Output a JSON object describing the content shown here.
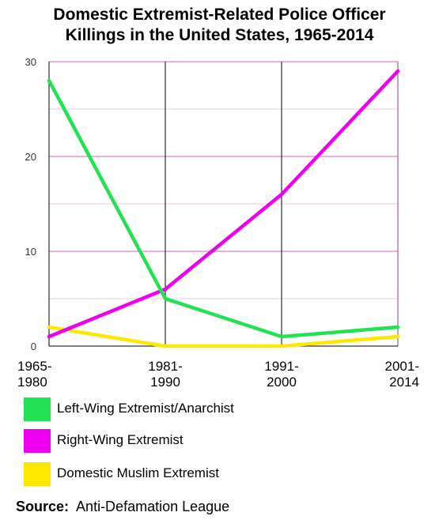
{
  "chart_data": {
    "type": "line",
    "title_lines": [
      "Domestic Extremist-Related Police Officer",
      "Killings in the United States, 1965-2014"
    ],
    "categories": [
      [
        "1965-",
        "1980"
      ],
      [
        "1981-",
        "1990"
      ],
      [
        "1991-",
        "2000"
      ],
      [
        "2001-",
        "2014"
      ]
    ],
    "series": [
      {
        "name": "Left-Wing Extremist/Anarchist",
        "values": [
          28,
          5,
          1,
          2
        ],
        "color": "#22e152"
      },
      {
        "name": "Right-Wing Extremist",
        "values": [
          1,
          6,
          16,
          29
        ],
        "color": "#ee00ee"
      },
      {
        "name": "Domestic Muslim Extremist",
        "values": [
          2,
          0,
          0,
          1
        ],
        "color": "#ffe800"
      }
    ],
    "yticks": [
      "0",
      "10",
      "20",
      "30"
    ],
    "ylim": [
      0,
      30
    ],
    "grid": true,
    "major_gridline_color": "#e060b0",
    "minor_gridline_color": "#f3c6e6",
    "vertical_gridline_color": "#000000",
    "legend_placement": "bottom",
    "source_label": "Source:",
    "source_text": "Anti-Defamation League"
  }
}
